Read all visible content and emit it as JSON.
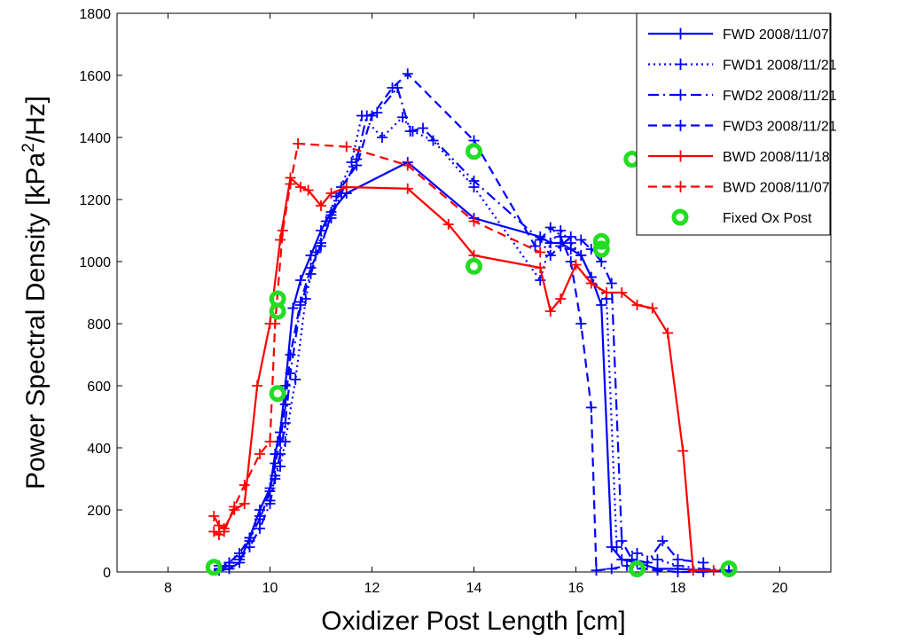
{
  "chart_data": {
    "type": "line",
    "title": "",
    "xlabel": "Oxidizer Post Length [cm]",
    "ylabel_parts": {
      "base": "Power Spectral Density [kPa",
      "sup": "2",
      "tail": "/Hz]"
    },
    "xlim": [
      7,
      21
    ],
    "ylim": [
      0,
      1800
    ],
    "xticks": [
      8,
      10,
      12,
      14,
      16,
      18,
      20
    ],
    "yticks": [
      0,
      200,
      400,
      600,
      800,
      1000,
      1200,
      1400,
      1600,
      1800
    ],
    "grid": false,
    "legend_position": "top-right",
    "series": [
      {
        "name": "FWD  2008/11/07",
        "color": "#0000ff",
        "dash": "solid",
        "marker": "plus",
        "x": [
          9.0,
          9.2,
          9.4,
          9.6,
          9.8,
          10.0,
          10.1,
          10.15,
          10.2,
          10.3,
          10.45,
          10.6,
          10.8,
          11.0,
          11.2,
          11.5,
          12.7,
          14.0,
          15.3,
          15.5,
          15.7,
          15.9,
          16.1,
          16.3,
          16.5,
          16.7,
          16.9,
          17.2,
          17.6,
          18.0,
          18.5,
          19.0
        ],
        "y": [
          5,
          10,
          30,
          110,
          200,
          270,
          380,
          420,
          450,
          600,
          850,
          940,
          1020,
          1100,
          1160,
          1220,
          1320,
          1140,
          1080,
          1060,
          1060,
          1040,
          1020,
          950,
          860,
          80,
          40,
          30,
          10,
          10,
          5,
          0
        ]
      },
      {
        "name": "FWD1 2008/11/21",
        "color": "#0000ff",
        "dash": "dotted",
        "marker": "plus",
        "x": [
          9.0,
          9.2,
          9.4,
          9.6,
          9.8,
          10.0,
          10.1,
          10.2,
          10.3,
          10.5,
          10.7,
          10.9,
          11.1,
          11.3,
          11.6,
          11.8,
          12.2,
          12.6,
          12.8,
          13.2,
          14.0,
          15.3,
          15.5,
          15.7,
          15.9,
          16.1,
          16.3,
          16.6,
          16.8,
          17.2,
          17.6,
          18.0,
          18.5,
          19.0
        ],
        "y": [
          20,
          30,
          50,
          100,
          180,
          230,
          310,
          340,
          420,
          620,
          880,
          1030,
          1130,
          1210,
          1320,
          1470,
          1400,
          1465,
          1420,
          1390,
          1240,
          940,
          1060,
          1100,
          1060,
          1020,
          950,
          880,
          80,
          60,
          40,
          20,
          10,
          5
        ]
      },
      {
        "name": "FWD2 2008/11/21",
        "color": "#0000ff",
        "dash": "dashdot",
        "marker": "plus",
        "x": [
          9.0,
          9.2,
          9.4,
          9.6,
          9.8,
          10.0,
          10.1,
          10.2,
          10.3,
          10.4,
          10.6,
          10.8,
          11.0,
          11.2,
          11.4,
          11.7,
          11.9,
          12.1,
          12.5,
          12.75,
          13.0,
          14.0,
          15.3,
          15.5,
          15.7,
          15.9,
          16.1,
          16.3,
          16.5,
          16.7,
          16.9,
          17.1,
          17.4,
          17.7,
          18.0,
          18.5
        ],
        "y": [
          10,
          20,
          40,
          80,
          140,
          220,
          300,
          380,
          480,
          640,
          860,
          960,
          1060,
          1140,
          1220,
          1330,
          1470,
          1480,
          1560,
          1420,
          1430,
          1260,
          1070,
          1020,
          1050,
          1080,
          1070,
          1040,
          1000,
          930,
          100,
          40,
          30,
          100,
          40,
          30
        ]
      },
      {
        "name": "FWD3 2008/11/21",
        "color": "#0000ff",
        "dash": "dashed",
        "marker": "plus",
        "x": [
          9.0,
          9.2,
          9.4,
          9.6,
          9.8,
          10.0,
          10.1,
          10.2,
          10.3,
          10.4,
          10.6,
          10.8,
          11.0,
          11.2,
          11.4,
          11.7,
          12.0,
          12.4,
          12.7,
          14.0,
          15.2,
          15.5,
          15.7,
          15.9,
          16.1,
          16.3,
          16.4,
          16.7,
          17.0,
          17.3,
          17.6,
          18.0,
          18.5
        ],
        "y": [
          10,
          30,
          60,
          110,
          170,
          260,
          350,
          420,
          540,
          700,
          870,
          980,
          1050,
          1150,
          1240,
          1310,
          1470,
          1560,
          1605,
          1390,
          1050,
          1110,
          1080,
          1000,
          800,
          530,
          5,
          10,
          20,
          10,
          5,
          0,
          0
        ]
      },
      {
        "name": "BWD  2008/11/18",
        "color": "#ff0000",
        "dash": "solid",
        "marker": "plus",
        "x": [
          8.9,
          9.0,
          9.1,
          9.3,
          9.5,
          9.75,
          10.0,
          10.2,
          10.4,
          10.6,
          10.75,
          11.0,
          11.2,
          11.5,
          12.7,
          13.5,
          14.0,
          15.3,
          15.5,
          15.7,
          16.0,
          16.3,
          16.6,
          16.9,
          17.2,
          17.5,
          17.8,
          18.1,
          18.3,
          18.7
        ],
        "y": [
          180,
          150,
          140,
          200,
          220,
          600,
          800,
          1070,
          1270,
          1240,
          1230,
          1180,
          1220,
          1240,
          1235,
          1120,
          1020,
          980,
          840,
          880,
          990,
          930,
          900,
          900,
          860,
          850,
          770,
          390,
          5,
          5
        ]
      },
      {
        "name": "BWD  2008/11/07",
        "color": "#ff0000",
        "dash": "dashed",
        "marker": "plus",
        "x": [
          8.9,
          9.0,
          9.1,
          9.3,
          9.5,
          9.8,
          10.0,
          10.1,
          10.25,
          10.4,
          10.55,
          11.5,
          12.7,
          14.0,
          15.3
        ],
        "y": [
          130,
          120,
          130,
          210,
          280,
          380,
          420,
          800,
          1100,
          1250,
          1380,
          1370,
          1310,
          1130,
          1030
        ]
      }
    ],
    "markers": {
      "name": "Fixed Ox Post",
      "color": "#22dd22",
      "marker": "ring",
      "x": [
        8.9,
        10.15,
        10.15,
        10.15,
        14.0,
        14.0,
        16.5,
        16.5,
        17.1,
        17.2,
        19.0
      ],
      "y": [
        15,
        880,
        840,
        575,
        985,
        1355,
        1065,
        1040,
        1330,
        10,
        10
      ]
    }
  }
}
